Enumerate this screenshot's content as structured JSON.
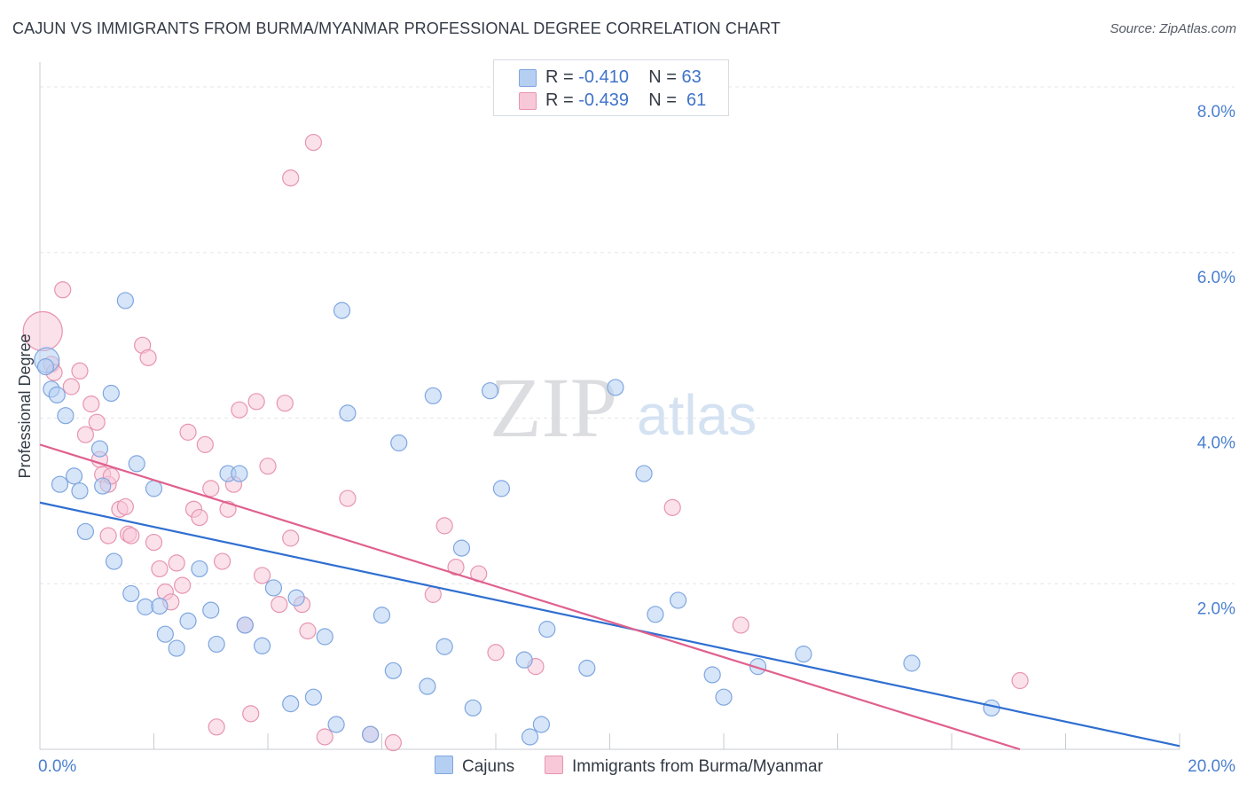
{
  "title": "CAJUN VS IMMIGRANTS FROM BURMA/MYANMAR PROFESSIONAL DEGREE CORRELATION CHART",
  "source": "Source: ZipAtlas.com",
  "watermark": {
    "zip": "ZIP",
    "atlas": "atlas"
  },
  "legend": {
    "rows": [
      {
        "r_label": "R =",
        "r_value": "-0.410",
        "n_label": "N =",
        "n_value": "63"
      },
      {
        "r_label": "R =",
        "r_value": "-0.439",
        "n_label": "N =",
        "n_value": "61"
      }
    ]
  },
  "bottom_legend": {
    "cajuns": "Cajuns",
    "burma": "Immigrants from Burma/Myanmar"
  },
  "chart_data": {
    "type": "scatter",
    "title": "CAJUN VS IMMIGRANTS FROM BURMA/MYANMAR PROFESSIONAL DEGREE CORRELATION CHART",
    "xlabel": "",
    "ylabel": "Professional Degree",
    "xlim": [
      0,
      20
    ],
    "ylim": [
      0,
      8.3
    ],
    "x_tick_labels": [
      "0.0%",
      "20.0%"
    ],
    "y_ticks": [
      2,
      4,
      6,
      8
    ],
    "y_tick_labels": [
      "2.0%",
      "4.0%",
      "6.0%",
      "8.0%"
    ],
    "grid": true,
    "legend_position": "top-center",
    "colors": {
      "cajuns_fill": "#b5cff3",
      "cajuns_stroke": "#7fa6e0",
      "cajuns_line": "#2f6fd0",
      "burma_fill": "#f8c8d8",
      "burma_stroke": "#e795b0",
      "burma_line": "#e0608e"
    },
    "series": [
      {
        "name": "Cajuns",
        "r": -0.41,
        "n": 63,
        "trend": {
          "x": [
            0,
            20
          ],
          "y": [
            2.98,
            0.04
          ]
        },
        "points": [
          [
            0.12,
            4.7
          ],
          [
            0.1,
            4.62
          ],
          [
            0.2,
            4.35
          ],
          [
            0.3,
            4.28
          ],
          [
            0.45,
            4.03
          ],
          [
            0.35,
            3.2
          ],
          [
            0.6,
            3.3
          ],
          [
            0.7,
            3.12
          ],
          [
            0.8,
            2.63
          ],
          [
            1.05,
            3.63
          ],
          [
            1.25,
            4.3
          ],
          [
            1.5,
            5.42
          ],
          [
            1.1,
            3.18
          ],
          [
            1.3,
            2.27
          ],
          [
            1.6,
            1.88
          ],
          [
            1.7,
            3.45
          ],
          [
            1.85,
            1.72
          ],
          [
            2.0,
            3.15
          ],
          [
            2.1,
            1.73
          ],
          [
            2.2,
            1.39
          ],
          [
            2.4,
            1.22
          ],
          [
            2.6,
            1.55
          ],
          [
            2.8,
            2.18
          ],
          [
            3.0,
            1.68
          ],
          [
            3.1,
            1.27
          ],
          [
            3.3,
            3.33
          ],
          [
            3.5,
            3.33
          ],
          [
            3.6,
            1.5
          ],
          [
            3.9,
            1.25
          ],
          [
            4.1,
            1.95
          ],
          [
            4.5,
            1.83
          ],
          [
            4.4,
            0.55
          ],
          [
            4.8,
            0.63
          ],
          [
            5.0,
            1.36
          ],
          [
            5.2,
            0.3
          ],
          [
            5.3,
            5.3
          ],
          [
            5.4,
            4.06
          ],
          [
            5.8,
            0.18
          ],
          [
            6.0,
            1.62
          ],
          [
            6.2,
            0.95
          ],
          [
            6.3,
            3.7
          ],
          [
            6.8,
            0.76
          ],
          [
            6.9,
            4.27
          ],
          [
            7.1,
            1.24
          ],
          [
            7.4,
            2.43
          ],
          [
            7.6,
            0.5
          ],
          [
            7.9,
            4.33
          ],
          [
            8.1,
            3.15
          ],
          [
            8.5,
            1.08
          ],
          [
            8.6,
            0.15
          ],
          [
            8.8,
            0.3
          ],
          [
            8.9,
            1.45
          ],
          [
            9.6,
            0.98
          ],
          [
            10.1,
            4.37
          ],
          [
            10.6,
            3.33
          ],
          [
            10.8,
            1.63
          ],
          [
            11.2,
            1.8
          ],
          [
            11.8,
            0.9
          ],
          [
            12.0,
            0.63
          ],
          [
            13.4,
            1.15
          ],
          [
            15.3,
            1.04
          ],
          [
            16.7,
            0.5
          ],
          [
            12.6,
            1.0
          ]
        ]
      },
      {
        "name": "Immigrants from Burma/Myanmar",
        "r": -0.439,
        "n": 61,
        "trend": {
          "x": [
            0,
            17.2
          ],
          "y": [
            3.68,
            0.0
          ]
        },
        "points": [
          [
            0.05,
            5.05
          ],
          [
            0.2,
            4.65
          ],
          [
            0.25,
            4.55
          ],
          [
            0.4,
            5.55
          ],
          [
            0.55,
            4.38
          ],
          [
            0.7,
            4.57
          ],
          [
            0.8,
            3.8
          ],
          [
            0.9,
            4.17
          ],
          [
            1.0,
            3.95
          ],
          [
            1.05,
            3.5
          ],
          [
            1.1,
            3.32
          ],
          [
            1.2,
            3.2
          ],
          [
            1.25,
            3.3
          ],
          [
            1.4,
            2.9
          ],
          [
            1.5,
            2.93
          ],
          [
            1.55,
            2.6
          ],
          [
            1.6,
            2.58
          ],
          [
            1.8,
            4.88
          ],
          [
            1.9,
            4.73
          ],
          [
            2.0,
            2.5
          ],
          [
            2.1,
            2.18
          ],
          [
            2.2,
            1.9
          ],
          [
            2.3,
            1.78
          ],
          [
            2.4,
            2.25
          ],
          [
            2.5,
            1.98
          ],
          [
            2.6,
            3.83
          ],
          [
            2.7,
            2.9
          ],
          [
            2.8,
            2.8
          ],
          [
            2.9,
            3.68
          ],
          [
            3.0,
            3.15
          ],
          [
            3.1,
            0.27
          ],
          [
            3.2,
            2.27
          ],
          [
            3.3,
            2.9
          ],
          [
            3.4,
            3.2
          ],
          [
            3.5,
            4.1
          ],
          [
            3.6,
            1.5
          ],
          [
            3.7,
            0.43
          ],
          [
            3.8,
            4.2
          ],
          [
            3.9,
            2.1
          ],
          [
            4.0,
            3.42
          ],
          [
            4.2,
            1.75
          ],
          [
            4.3,
            4.18
          ],
          [
            4.4,
            2.55
          ],
          [
            4.4,
            6.9
          ],
          [
            4.6,
            1.75
          ],
          [
            4.7,
            1.43
          ],
          [
            4.8,
            7.33
          ],
          [
            5.0,
            0.15
          ],
          [
            5.4,
            3.03
          ],
          [
            5.8,
            0.18
          ],
          [
            6.2,
            0.08
          ],
          [
            6.9,
            1.87
          ],
          [
            7.1,
            2.7
          ],
          [
            7.3,
            2.2
          ],
          [
            7.7,
            2.12
          ],
          [
            8.0,
            1.17
          ],
          [
            8.7,
            1.0
          ],
          [
            11.1,
            2.92
          ],
          [
            12.3,
            1.5
          ],
          [
            17.2,
            0.83
          ],
          [
            1.2,
            2.58
          ]
        ]
      }
    ]
  }
}
